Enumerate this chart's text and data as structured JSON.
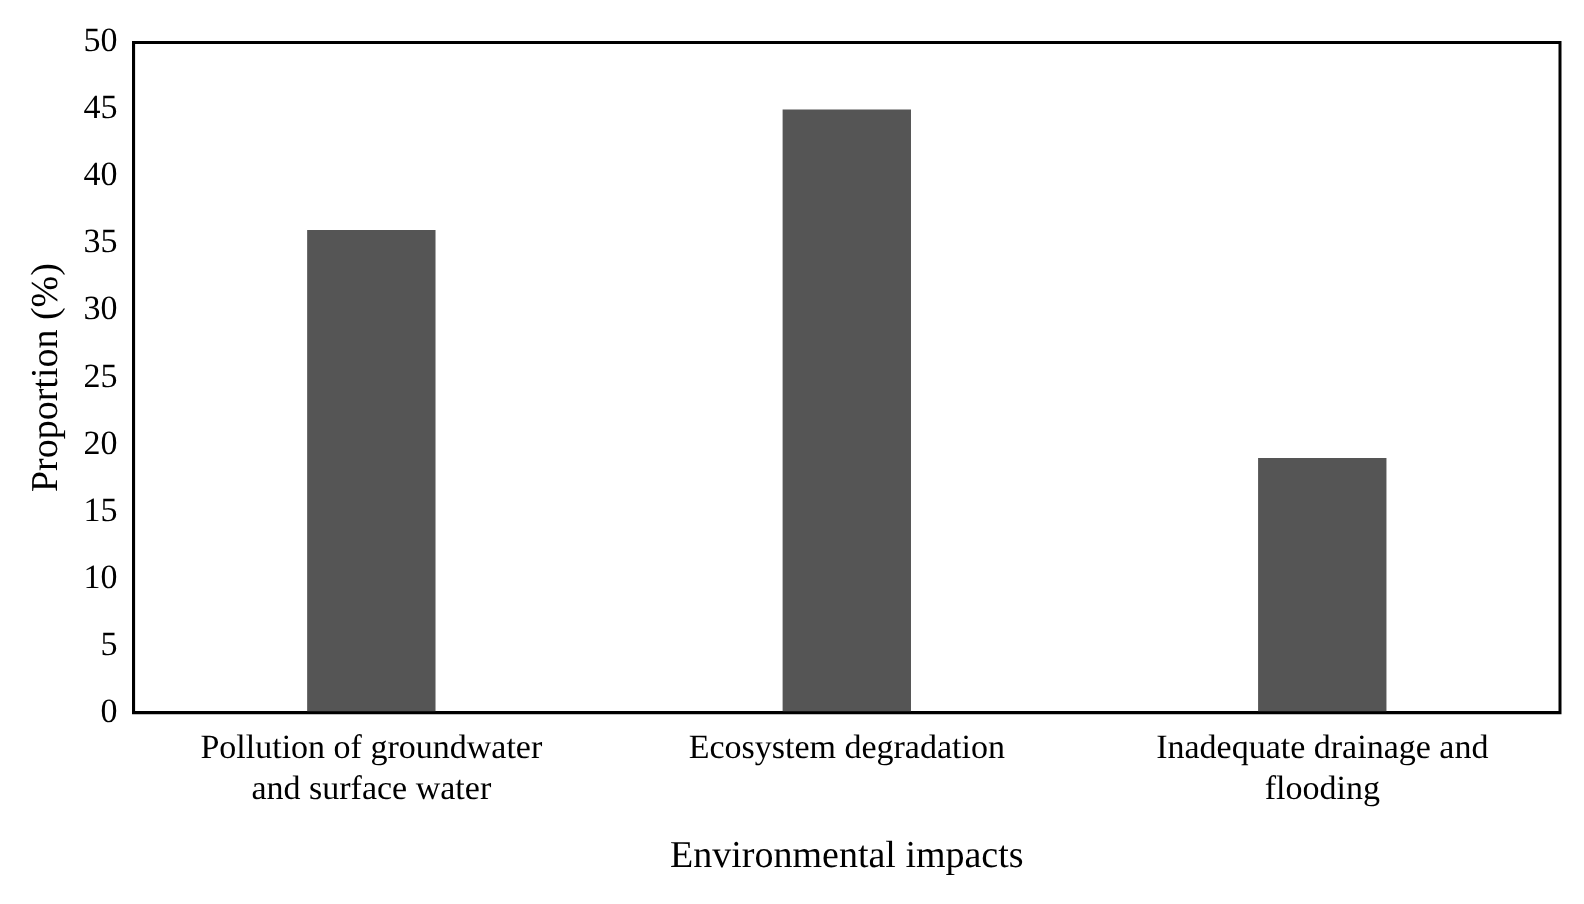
{
  "chart_data": {
    "type": "bar",
    "xlabel": "Environmental impacts",
    "ylabel": "Proportion (%)",
    "categories": [
      "Pollution of groundwater and surface water",
      "Ecosystem degradation",
      "Inadequate drainage and flooding"
    ],
    "values": [
      36,
      45,
      19
    ],
    "color": "#555555",
    "ylim": [
      0,
      50
    ],
    "yticks": [
      0,
      5,
      10,
      15,
      20,
      25,
      30,
      35,
      40,
      45,
      50
    ],
    "grid": false
  }
}
